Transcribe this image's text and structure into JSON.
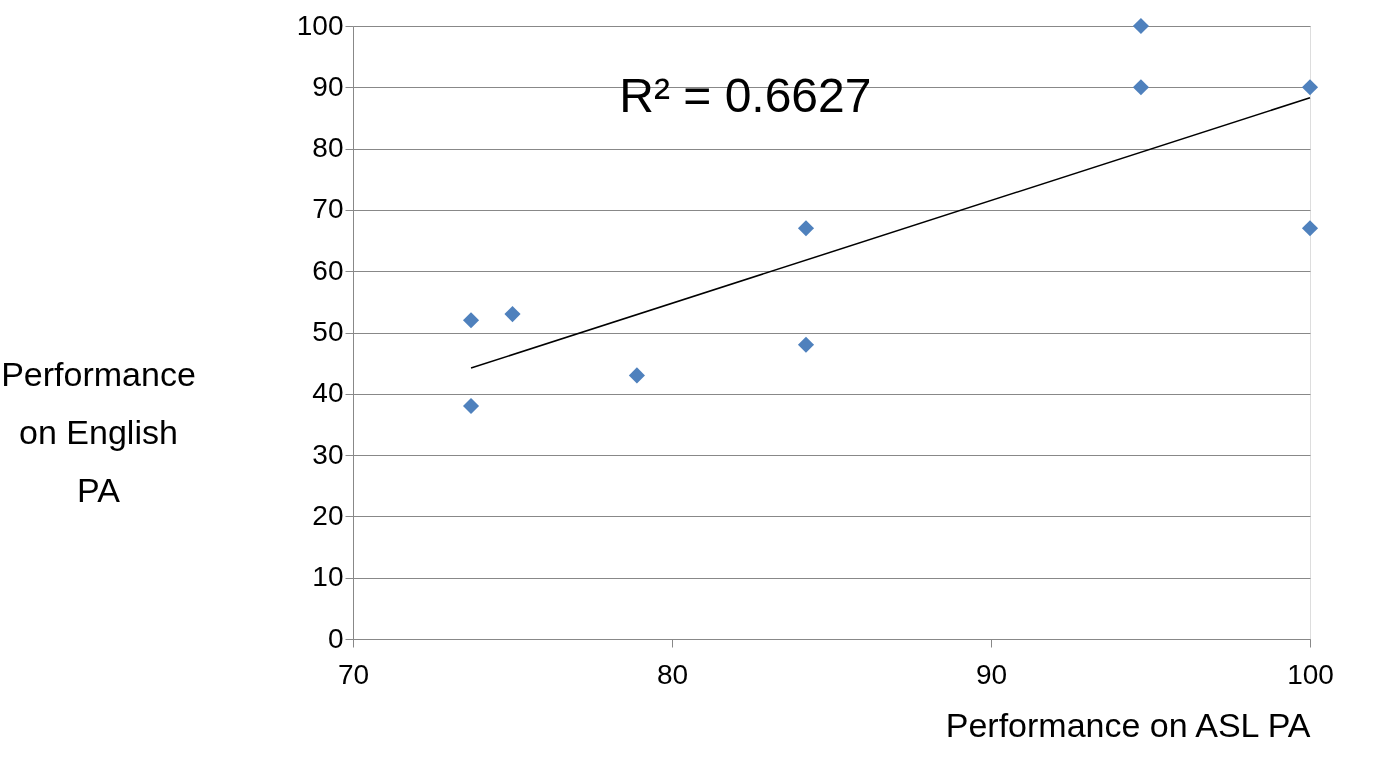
{
  "chart_data": {
    "type": "scatter",
    "xlabel": "Performance on ASL PA",
    "ylabel": "Performance on English PA",
    "annotations": [
      "R² = 0.6627"
    ],
    "xlim": [
      70,
      100
    ],
    "xticks": [
      70,
      80,
      90,
      100
    ],
    "ylim": [
      0,
      100
    ],
    "yticks": [
      0,
      10,
      20,
      30,
      40,
      50,
      60,
      70,
      80,
      90,
      100
    ],
    "grid": "y",
    "legend": false,
    "marker": "diamond",
    "series": [
      {
        "color": "#4f81bd",
        "x": [
          73.7,
          73.7,
          75.0,
          78.9,
          84.2,
          84.2,
          94.7,
          94.7,
          100,
          100
        ],
        "values": [
          52,
          38,
          53,
          43,
          67,
          48,
          100,
          90,
          90,
          67
        ]
      },
      {
        "type": "line",
        "color": "#000000",
        "x": [
          73.7,
          100
        ],
        "values": [
          44.2,
          88.3
        ],
        "marker": "none",
        "line_style": "solid"
      }
    ]
  }
}
